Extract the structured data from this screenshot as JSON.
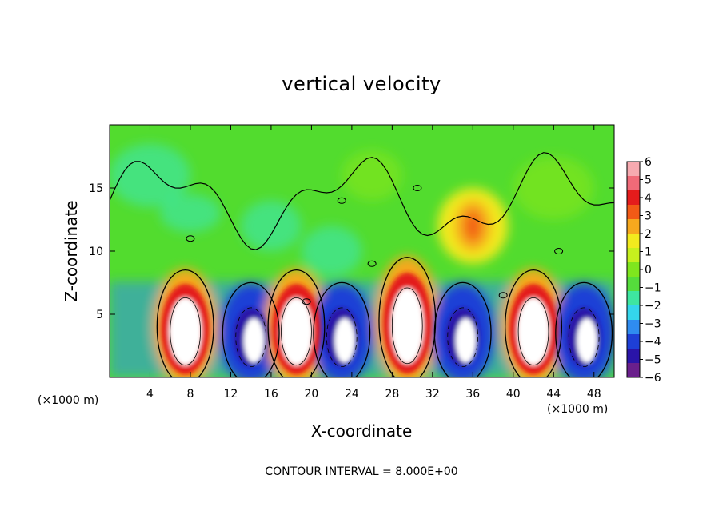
{
  "chart_data": {
    "type": "heatmap",
    "title": "vertical velocity",
    "xlabel": "X-coordinate",
    "ylabel": "Z-coordinate",
    "x_unit_left": "(×1000 m)",
    "x_unit_right": "(×1000 m)",
    "xlim": [
      0,
      50
    ],
    "ylim": [
      0,
      20
    ],
    "x_ticks": [
      4,
      8,
      12,
      16,
      20,
      24,
      28,
      32,
      36,
      40,
      44,
      48
    ],
    "y_ticks": [
      5,
      10,
      15
    ],
    "colorbar": {
      "ticks": [
        6,
        5,
        4,
        3,
        2,
        1,
        0,
        -1,
        -2,
        -3,
        -4,
        -5,
        -6
      ],
      "range": [
        -6,
        6
      ],
      "colors": [
        "#6a1f8c",
        "#2a14a8",
        "#1e3fd6",
        "#2f8cf0",
        "#34d6ec",
        "#3ee6a0",
        "#55dd3c",
        "#7fe61e",
        "#c6f01e",
        "#f2ea1e",
        "#f6a81e",
        "#f25a16",
        "#e41c1c",
        "#f06a78",
        "#f6aab0"
      ]
    },
    "contour_interval_text": "CONTOUR INTERVAL = 8.000E+00",
    "features": [
      {
        "type": "updraft",
        "x_center": 7.5,
        "z_top": 8,
        "peak_gt": 6
      },
      {
        "type": "downdraft",
        "x_center": 14,
        "z_top": 7,
        "peak_lt": -6
      },
      {
        "type": "updraft",
        "x_center": 18.5,
        "z_top": 8,
        "peak_gt": 6
      },
      {
        "type": "downdraft",
        "x_center": 23,
        "z_top": 7,
        "peak_lt": -6
      },
      {
        "type": "updraft",
        "x_center": 29.5,
        "z_top": 9,
        "peak_gt": 6
      },
      {
        "type": "downdraft",
        "x_center": 35,
        "z_top": 7,
        "peak_lt": -6
      },
      {
        "type": "updraft",
        "x_center": 42,
        "z_top": 8,
        "peak_gt": 6
      },
      {
        "type": "downdraft",
        "x_center": 47,
        "z_top": 7,
        "peak_lt": -6
      },
      {
        "type": "updraft_aloft",
        "x_center": 36,
        "z_center": 12,
        "peak": 4
      }
    ]
  }
}
